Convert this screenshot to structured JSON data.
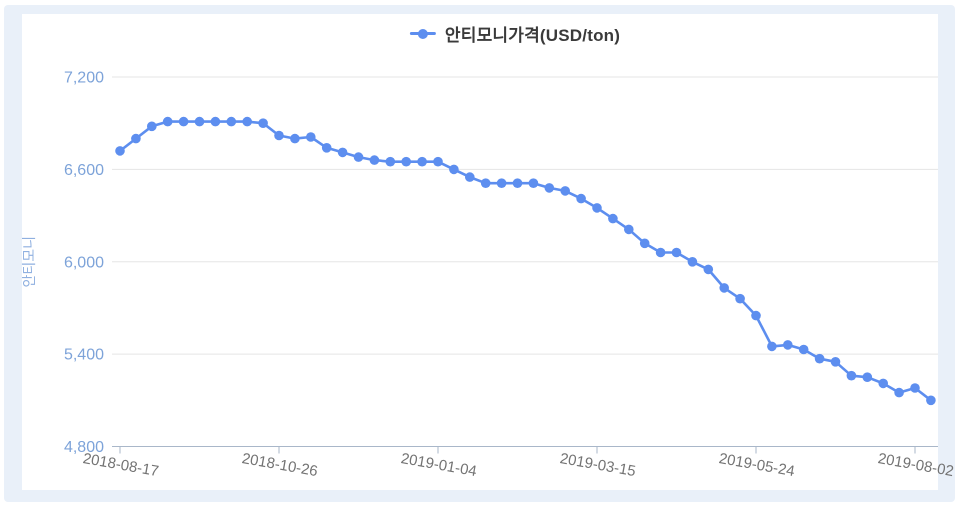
{
  "legend": {
    "label": "안티모니가격(USD/ton)"
  },
  "chart_data": {
    "type": "line",
    "title": "",
    "series": [
      {
        "name": "안티모니가격(USD/ton)",
        "values": [
          6720,
          6800,
          6880,
          6910,
          6910,
          6910,
          6910,
          6910,
          6910,
          6900,
          6820,
          6800,
          6810,
          6740,
          6710,
          6680,
          6660,
          6650,
          6650,
          6650,
          6650,
          6600,
          6550,
          6510,
          6510,
          6510,
          6510,
          6480,
          6460,
          6410,
          6350,
          6280,
          6210,
          6120,
          6060,
          6060,
          6000,
          5950,
          5830,
          5760,
          5650,
          5450,
          5460,
          5430,
          5370,
          5350,
          5260,
          5250,
          5210,
          5150,
          5180,
          5100
        ]
      }
    ],
    "x": [
      "2018-08-17",
      "2018-08-24",
      "2018-08-31",
      "2018-09-07",
      "2018-09-14",
      "2018-09-21",
      "2018-09-28",
      "2018-10-05",
      "2018-10-12",
      "2018-10-19",
      "2018-10-26",
      "2018-11-02",
      "2018-11-09",
      "2018-11-16",
      "2018-11-23",
      "2018-11-30",
      "2018-12-07",
      "2018-12-14",
      "2018-12-21",
      "2018-12-28",
      "2019-01-04",
      "2019-01-11",
      "2019-01-18",
      "2019-01-25",
      "2019-02-01",
      "2019-02-08",
      "2019-02-15",
      "2019-02-22",
      "2019-03-01",
      "2019-03-08",
      "2019-03-15",
      "2019-03-22",
      "2019-03-29",
      "2019-04-05",
      "2019-04-12",
      "2019-04-19",
      "2019-04-26",
      "2019-05-03",
      "2019-05-10",
      "2019-05-17",
      "2019-05-24",
      "2019-05-31",
      "2019-06-07",
      "2019-06-14",
      "2019-06-21",
      "2019-06-28",
      "2019-07-05",
      "2019-07-12",
      "2019-07-19",
      "2019-07-26",
      "2019-08-02",
      "2019-08-09"
    ],
    "x_tick_indices": [
      0,
      10,
      20,
      30,
      40,
      50
    ],
    "x_tick_labels": [
      "2018-08-17",
      "2018-10-26",
      "2019-01-04",
      "2019-03-15",
      "2019-05-24",
      "2019-08-02"
    ],
    "y_ticks": [
      4800,
      5400,
      6000,
      6600,
      7200
    ],
    "y_tick_labels": [
      "4,800",
      "5,400",
      "6,000",
      "6,600",
      "7,200"
    ],
    "ylim": [
      4800,
      7200
    ],
    "xlabel": "",
    "ylabel": "안티모니",
    "grid": true,
    "legend_position": "top",
    "marker": "circle"
  },
  "colors": {
    "series": "#5d8eef",
    "grid": "#e5e5e5",
    "axis": "#a9b7c9",
    "y_tick_label": "#7da3d9",
    "y_axis_title": "#8fb0e0",
    "x_tick_label": "#737373",
    "legend_text": "#3a3a3a",
    "card_bg": "#e9f0f9",
    "panel_bg": "#ffffff"
  }
}
